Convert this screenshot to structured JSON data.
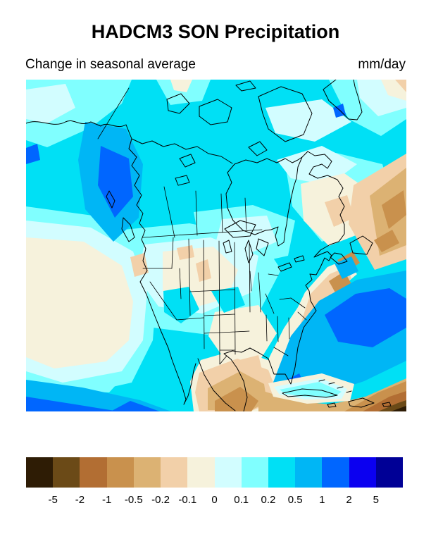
{
  "figure": {
    "title": "HADCM3 SON Precipitation",
    "subtitle": "Change in seasonal average",
    "units": "mm/day"
  },
  "chart_data": {
    "type": "heatmap",
    "variant": "filled-contour-map",
    "title": "HADCM3 SON Precipitation",
    "subtitle": "Change in seasonal average",
    "units": "mm/day",
    "region": "North America (Pacific to western Atlantic, Mexico and Caribbean to Arctic islands and Greenland)",
    "legend_position": "bottom",
    "colorbar": {
      "orientation": "horizontal",
      "levels_mm_per_day": [
        -5,
        -2,
        -1,
        -0.5,
        -0.2,
        -0.1,
        0,
        0.1,
        0.2,
        0.5,
        1,
        2,
        5
      ],
      "tick_labels": [
        "-5",
        "-2",
        "-1",
        "-0.5",
        "-0.2",
        "-0.1",
        "0",
        "0.1",
        "0.2",
        "0.5",
        "1",
        "2",
        "5"
      ],
      "colors": [
        "#2e1c05",
        "#6b4a17",
        "#b26e33",
        "#c9914d",
        "#dcb273",
        "#f2d0a9",
        "#f6f2dc",
        "#d2fdff",
        "#80ffff",
        "#00e0f5",
        "#00b6f5",
        "#0066ff",
        "#0b00f0",
        "#000096"
      ],
      "color_meaning": "browns = decrease in precipitation, blues = increase in precipitation"
    },
    "anomaly_regions": [
      {
        "area": "British Columbia / southeast Alaska coast",
        "value_mm_per_day": "+1 to +2"
      },
      {
        "area": "Northeast Pacific and most of Canada",
        "value_mm_per_day": "+0.2 to +0.5"
      },
      {
        "area": "Pacific off California",
        "value_mm_per_day": "-0.1 to 0"
      },
      {
        "area": "Central and western United States",
        "value_mm_per_day": "-0.1 to +0.2"
      },
      {
        "area": "Labrador / northeastern Quebec",
        "value_mm_per_day": "-0.2 to -0.1"
      },
      {
        "area": "Northwest Atlantic east of Newfoundland",
        "value_mm_per_day": "-0.5 to -1"
      },
      {
        "area": "Subtropical west Atlantic (Bahamas)",
        "value_mm_per_day": "+1 to +2"
      },
      {
        "area": "Gulf of Mexico and Mexico",
        "value_mm_per_day": "-0.5 to -1"
      },
      {
        "area": "Caribbean toward southeast corner",
        "value_mm_per_day": "-2 to -5"
      },
      {
        "area": "Ocean south of Baja California",
        "value_mm_per_day": "+1 to +2"
      }
    ]
  }
}
